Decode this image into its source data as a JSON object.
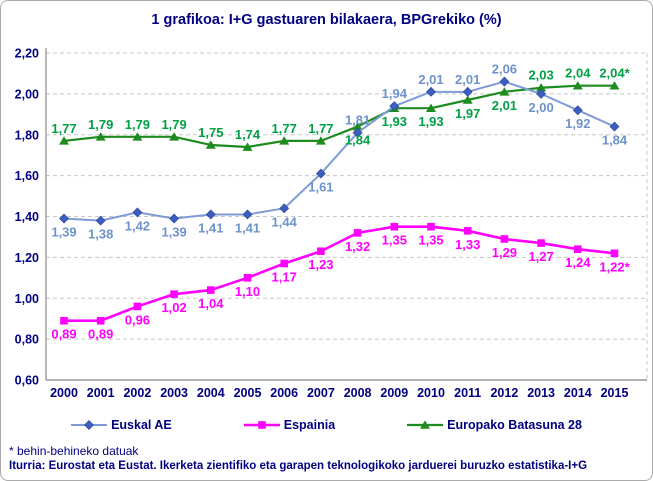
{
  "title": "1 grafikoa: I+G gastuaren bilakaera, BPGrekiko (%)",
  "footnote": "* behin-behineko datuak",
  "source": "Iturria: Eurostat eta Eustat. Ikerketa zientifiko eta garapen teknologikoko jarduerei buruzko estatistika-I+G",
  "chart_data": {
    "type": "line",
    "title": "1 grafikoa: I+G gastuaren bilakaera, BPGrekiko (%)",
    "categories": [
      "2000",
      "2001",
      "2002",
      "2003",
      "2004",
      "2005",
      "2006",
      "2007",
      "2008",
      "2009",
      "2010",
      "2011",
      "2012",
      "2013",
      "2014",
      "2015"
    ],
    "grid": "horizontal-dashed",
    "legend_position": "bottom",
    "colors": {
      "text": "#000080",
      "grid": "#c8c8c8",
      "axis": "#999999"
    },
    "y_axis": {
      "min": 0.6,
      "max": 2.2,
      "step": 0.2,
      "decimal_style": "comma",
      "ticks": [
        {
          "value": 2.2,
          "label": "2,20"
        },
        {
          "value": 2.0,
          "label": "2,00"
        },
        {
          "value": 1.8,
          "label": "1,80"
        },
        {
          "value": 1.6,
          "label": "1,60"
        },
        {
          "value": 1.4,
          "label": "1,40"
        },
        {
          "value": 1.2,
          "label": "1,20"
        },
        {
          "value": 1.0,
          "label": "1,00"
        },
        {
          "value": 0.8,
          "label": "0,80"
        },
        {
          "value": 0.6,
          "label": "0,60"
        }
      ]
    },
    "series": [
      {
        "name": "Euskal AE",
        "marker": "diamond",
        "line_color": "#7e9bd8",
        "marker_color": "#3d5ebe",
        "label_color": "#6e93cc",
        "line_width": 2,
        "values": [
          1.39,
          1.38,
          1.42,
          1.39,
          1.41,
          1.41,
          1.44,
          1.61,
          1.81,
          1.94,
          2.01,
          2.01,
          2.06,
          2.0,
          1.92,
          1.84
        ],
        "labels": [
          "1,39",
          "1,38",
          "1,42",
          "1,39",
          "1,41",
          "1,41",
          "1,44",
          "1,61",
          "1,81",
          "1,94",
          "2,01",
          "2,01",
          "2,06",
          "2,00",
          "1,92",
          "1,84"
        ],
        "label_side": [
          "below",
          "below",
          "below",
          "below",
          "below",
          "below",
          "below",
          "below",
          "above",
          "above",
          "above",
          "above",
          "above",
          "below",
          "below",
          "below"
        ]
      },
      {
        "name": "Espainia",
        "marker": "square",
        "line_color": "#ff00ff",
        "marker_color": "#ff00ff",
        "label_color": "#ff00ff",
        "line_width": 2.6,
        "values": [
          0.89,
          0.89,
          0.96,
          1.02,
          1.04,
          1.1,
          1.17,
          1.23,
          1.32,
          1.35,
          1.35,
          1.33,
          1.29,
          1.27,
          1.24,
          1.22
        ],
        "labels": [
          "0,89",
          "0,89",
          "0,96",
          "1,02",
          "1,04",
          "1,10",
          "1,17",
          "1,23",
          "1,32",
          "1,35",
          "1,35",
          "1,33",
          "1,29",
          "1,27",
          "1,24",
          "1,22*"
        ],
        "label_side": [
          "below",
          "below",
          "below",
          "below",
          "below",
          "below",
          "below",
          "below",
          "below",
          "below",
          "below",
          "below",
          "below",
          "below",
          "below",
          "below"
        ]
      },
      {
        "name": "Europako Batasuna 28",
        "marker": "triangle",
        "line_color": "#1e8b1e",
        "marker_color": "#1e8b1e",
        "label_color": "#00a045",
        "line_width": 2.2,
        "values": [
          1.77,
          1.79,
          1.79,
          1.79,
          1.75,
          1.74,
          1.77,
          1.77,
          1.84,
          1.93,
          1.93,
          1.97,
          2.01,
          2.03,
          2.04,
          2.04
        ],
        "labels": [
          "1,77",
          "1,79",
          "1,79",
          "1,79",
          "1,75",
          "1,74",
          "1,77",
          "1,77",
          "1,84",
          "1,93",
          "1,93",
          "1,97",
          "2,01",
          "2,03",
          "2,04",
          "2,04*"
        ],
        "label_side": [
          "above",
          "above",
          "above",
          "above",
          "above",
          "above",
          "above",
          "above",
          "below",
          "below",
          "below",
          "below",
          "below",
          "above",
          "above",
          "above"
        ]
      }
    ]
  }
}
